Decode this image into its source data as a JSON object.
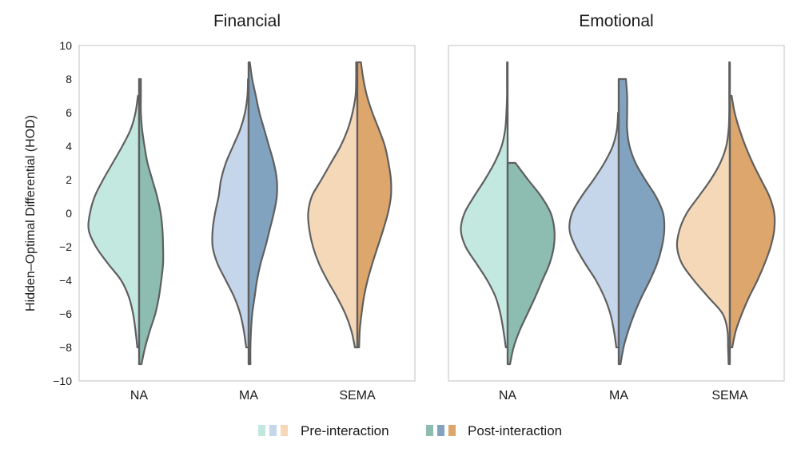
{
  "chart_data": {
    "type": "split-violin",
    "ylabel": "Hidden–Optimal Differential (HOD)",
    "ylim": [
      -10,
      10
    ],
    "yticks": [
      "−10",
      "−8",
      "−6",
      "−4",
      "−2",
      "0",
      "2",
      "4",
      "6",
      "8",
      "10"
    ],
    "categories": [
      "NA",
      "MA",
      "SEMA"
    ],
    "legend": {
      "pre_label": "Pre-interaction",
      "post_label": "Post-interaction",
      "position": "bottom-center"
    },
    "colors": {
      "pre": [
        "#c3e8df",
        "#c5d6ea",
        "#f5d8b8"
      ],
      "post": [
        "#8dbcb0",
        "#82a3bf",
        "#dda66d"
      ]
    },
    "panels": [
      {
        "title": "Financial",
        "groups": [
          {
            "category": "NA",
            "pre": {
              "min": -8,
              "max": 7,
              "profile": [
                [
                  -8,
                  0.03
                ],
                [
                  -7,
                  0.06
                ],
                [
                  -6,
                  0.1
                ],
                [
                  -5,
                  0.17
                ],
                [
                  -4,
                  0.3
                ],
                [
                  -3,
                  0.52
                ],
                [
                  -2,
                  0.72
                ],
                [
                  -1,
                  0.84
                ],
                [
                  0,
                  0.82
                ],
                [
                  1,
                  0.74
                ],
                [
                  2,
                  0.6
                ],
                [
                  3,
                  0.44
                ],
                [
                  4,
                  0.28
                ],
                [
                  5,
                  0.14
                ],
                [
                  6,
                  0.06
                ],
                [
                  7,
                  0.02
                ]
              ]
            },
            "post": {
              "min": -9,
              "max": 8,
              "profile": [
                [
                  -9,
                  0.04
                ],
                [
                  -8,
                  0.1
                ],
                [
                  -7,
                  0.18
                ],
                [
                  -6,
                  0.27
                ],
                [
                  -5,
                  0.33
                ],
                [
                  -4,
                  0.37
                ],
                [
                  -3,
                  0.4
                ],
                [
                  -2,
                  0.4
                ],
                [
                  -1,
                  0.39
                ],
                [
                  0,
                  0.36
                ],
                [
                  1,
                  0.3
                ],
                [
                  2,
                  0.22
                ],
                [
                  3,
                  0.14
                ],
                [
                  4,
                  0.09
                ],
                [
                  5,
                  0.05
                ],
                [
                  6,
                  0.03
                ],
                [
                  7,
                  0.03
                ],
                [
                  8,
                  0.03
                ]
              ]
            }
          },
          {
            "category": "MA",
            "pre": {
              "min": -8,
              "max": 8,
              "profile": [
                [
                  -8,
                  0.04
                ],
                [
                  -7,
                  0.08
                ],
                [
                  -6,
                  0.14
                ],
                [
                  -5,
                  0.24
                ],
                [
                  -4,
                  0.38
                ],
                [
                  -3,
                  0.52
                ],
                [
                  -2,
                  0.6
                ],
                [
                  -1,
                  0.6
                ],
                [
                  0,
                  0.56
                ],
                [
                  1,
                  0.5
                ],
                [
                  2,
                  0.46
                ],
                [
                  3,
                  0.38
                ],
                [
                  4,
                  0.26
                ],
                [
                  5,
                  0.14
                ],
                [
                  6,
                  0.06
                ],
                [
                  7,
                  0.02
                ],
                [
                  8,
                  0.01
                ]
              ]
            },
            "post": {
              "min": -9,
              "max": 9,
              "profile": [
                [
                  -9,
                  0.03
                ],
                [
                  -8,
                  0.03
                ],
                [
                  -7,
                  0.04
                ],
                [
                  -6,
                  0.06
                ],
                [
                  -5,
                  0.1
                ],
                [
                  -4,
                  0.14
                ],
                [
                  -3,
                  0.2
                ],
                [
                  -2,
                  0.28
                ],
                [
                  -1,
                  0.35
                ],
                [
                  0,
                  0.42
                ],
                [
                  1,
                  0.47
                ],
                [
                  2,
                  0.47
                ],
                [
                  3,
                  0.42
                ],
                [
                  4,
                  0.34
                ],
                [
                  5,
                  0.26
                ],
                [
                  6,
                  0.18
                ],
                [
                  7,
                  0.12
                ],
                [
                  8,
                  0.06
                ],
                [
                  9,
                  0.02
                ]
              ]
            }
          },
          {
            "category": "SEMA",
            "pre": {
              "min": -8,
              "max": 9,
              "profile": [
                [
                  -8,
                  0.04
                ],
                [
                  -7,
                  0.1
                ],
                [
                  -6,
                  0.2
                ],
                [
                  -5,
                  0.34
                ],
                [
                  -4,
                  0.5
                ],
                [
                  -3,
                  0.64
                ],
                [
                  -2,
                  0.74
                ],
                [
                  -1,
                  0.8
                ],
                [
                  0,
                  0.82
                ],
                [
                  1,
                  0.76
                ],
                [
                  2,
                  0.6
                ],
                [
                  3,
                  0.44
                ],
                [
                  4,
                  0.28
                ],
                [
                  5,
                  0.16
                ],
                [
                  6,
                  0.08
                ],
                [
                  7,
                  0.03
                ],
                [
                  8,
                  0.02
                ],
                [
                  9,
                  0.02
                ]
              ]
            },
            "post": {
              "min": -8,
              "max": 9,
              "profile": [
                [
                  -8,
                  0.03
                ],
                [
                  -7,
                  0.04
                ],
                [
                  -6,
                  0.07
                ],
                [
                  -5,
                  0.11
                ],
                [
                  -4,
                  0.17
                ],
                [
                  -3,
                  0.25
                ],
                [
                  -2,
                  0.34
                ],
                [
                  -1,
                  0.43
                ],
                [
                  0,
                  0.51
                ],
                [
                  1,
                  0.56
                ],
                [
                  2,
                  0.56
                ],
                [
                  3,
                  0.52
                ],
                [
                  4,
                  0.46
                ],
                [
                  5,
                  0.36
                ],
                [
                  6,
                  0.25
                ],
                [
                  7,
                  0.16
                ],
                [
                  8,
                  0.1
                ],
                [
                  9,
                  0.06
                ]
              ]
            }
          }
        ]
      },
      {
        "title": "Emotional",
        "groups": [
          {
            "category": "NA",
            "pre": {
              "min": -8,
              "max": 9,
              "profile": [
                [
                  -8,
                  0.03
                ],
                [
                  -7,
                  0.07
                ],
                [
                  -6,
                  0.12
                ],
                [
                  -5,
                  0.2
                ],
                [
                  -4,
                  0.34
                ],
                [
                  -3,
                  0.52
                ],
                [
                  -2,
                  0.7
                ],
                [
                  -1,
                  0.78
                ],
                [
                  0,
                  0.72
                ],
                [
                  1,
                  0.56
                ],
                [
                  2,
                  0.38
                ],
                [
                  3,
                  0.22
                ],
                [
                  4,
                  0.1
                ],
                [
                  5,
                  0.04
                ],
                [
                  6,
                  0.02
                ],
                [
                  7,
                  0.01
                ],
                [
                  8,
                  0.01
                ],
                [
                  9,
                  0.01
                ]
              ]
            },
            "post": {
              "min": -9,
              "max": 3,
              "profile": [
                [
                  -9,
                  0.04
                ],
                [
                  -8,
                  0.1
                ],
                [
                  -7,
                  0.2
                ],
                [
                  -6,
                  0.33
                ],
                [
                  -5,
                  0.46
                ],
                [
                  -4,
                  0.58
                ],
                [
                  -3,
                  0.7
                ],
                [
                  -2,
                  0.77
                ],
                [
                  -1,
                  0.78
                ],
                [
                  0,
                  0.72
                ],
                [
                  1,
                  0.56
                ],
                [
                  2,
                  0.34
                ],
                [
                  3,
                  0.13
                ]
              ]
            }
          },
          {
            "category": "MA",
            "pre": {
              "min": -8,
              "max": 6,
              "profile": [
                [
                  -8,
                  0.04
                ],
                [
                  -7,
                  0.08
                ],
                [
                  -6,
                  0.14
                ],
                [
                  -5,
                  0.24
                ],
                [
                  -4,
                  0.38
                ],
                [
                  -3,
                  0.56
                ],
                [
                  -2,
                  0.72
                ],
                [
                  -1,
                  0.82
                ],
                [
                  0,
                  0.78
                ],
                [
                  1,
                  0.62
                ],
                [
                  2,
                  0.42
                ],
                [
                  3,
                  0.24
                ],
                [
                  4,
                  0.1
                ],
                [
                  5,
                  0.03
                ],
                [
                  6,
                  0.01
                ]
              ]
            },
            "post": {
              "min": -9,
              "max": 8,
              "profile": [
                [
                  -9,
                  0.03
                ],
                [
                  -8,
                  0.08
                ],
                [
                  -7,
                  0.16
                ],
                [
                  -6,
                  0.26
                ],
                [
                  -5,
                  0.38
                ],
                [
                  -4,
                  0.52
                ],
                [
                  -3,
                  0.64
                ],
                [
                  -2,
                  0.72
                ],
                [
                  -1,
                  0.76
                ],
                [
                  0,
                  0.74
                ],
                [
                  1,
                  0.62
                ],
                [
                  2,
                  0.44
                ],
                [
                  3,
                  0.28
                ],
                [
                  4,
                  0.18
                ],
                [
                  5,
                  0.14
                ],
                [
                  6,
                  0.14
                ],
                [
                  7,
                  0.14
                ],
                [
                  8,
                  0.12
                ]
              ]
            }
          },
          {
            "category": "SEMA",
            "pre": {
              "min": -9,
              "max": 9,
              "profile": [
                [
                  -9,
                  0.02
                ],
                [
                  -8,
                  0.03
                ],
                [
                  -7,
                  0.04
                ],
                [
                  -6,
                  0.12
                ],
                [
                  -5,
                  0.36
                ],
                [
                  -4,
                  0.6
                ],
                [
                  -3,
                  0.8
                ],
                [
                  -2,
                  0.88
                ],
                [
                  -1,
                  0.84
                ],
                [
                  0,
                  0.72
                ],
                [
                  1,
                  0.52
                ],
                [
                  2,
                  0.32
                ],
                [
                  3,
                  0.16
                ],
                [
                  4,
                  0.06
                ],
                [
                  5,
                  0.02
                ],
                [
                  6,
                  0.01
                ],
                [
                  7,
                  0.01
                ],
                [
                  8,
                  0.01
                ],
                [
                  9,
                  0.01
                ]
              ]
            },
            "post": {
              "min": -8,
              "max": 7,
              "profile": [
                [
                  -8,
                  0.04
                ],
                [
                  -7,
                  0.1
                ],
                [
                  -6,
                  0.2
                ],
                [
                  -5,
                  0.32
                ],
                [
                  -4,
                  0.46
                ],
                [
                  -3,
                  0.58
                ],
                [
                  -2,
                  0.68
                ],
                [
                  -1,
                  0.74
                ],
                [
                  0,
                  0.74
                ],
                [
                  1,
                  0.66
                ],
                [
                  2,
                  0.52
                ],
                [
                  3,
                  0.38
                ],
                [
                  4,
                  0.26
                ],
                [
                  5,
                  0.16
                ],
                [
                  6,
                  0.08
                ],
                [
                  7,
                  0.03
                ]
              ]
            }
          }
        ]
      }
    ]
  }
}
